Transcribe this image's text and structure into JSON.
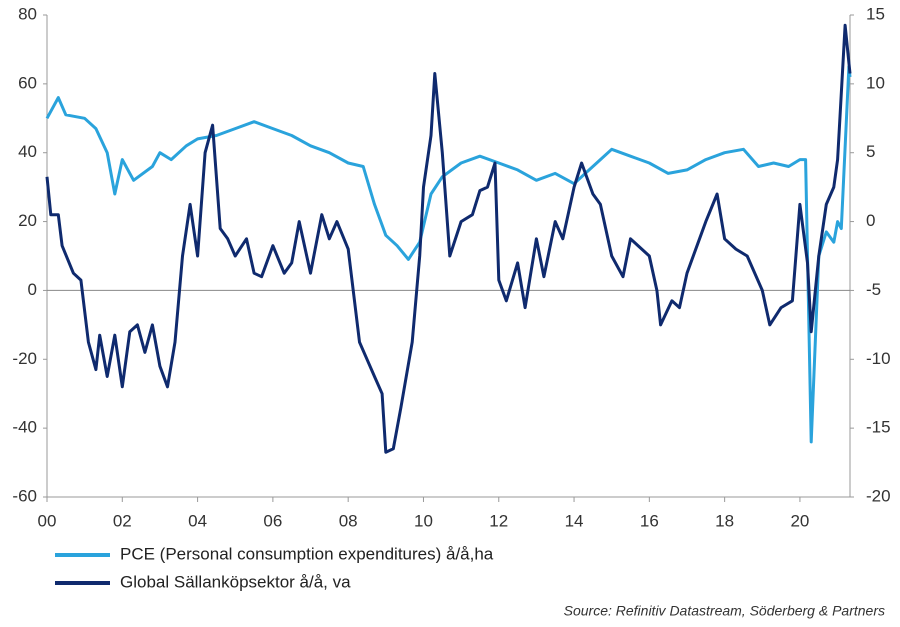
{
  "chart_data": {
    "type": "line",
    "source": "Source: Refinitiv Datastream, Söderberg & Partners",
    "xlim": [
      0,
      21.33
    ],
    "xticks": [
      {
        "value": 0,
        "label": "00"
      },
      {
        "value": 2,
        "label": "02"
      },
      {
        "value": 4,
        "label": "04"
      },
      {
        "value": 6,
        "label": "06"
      },
      {
        "value": 8,
        "label": "08"
      },
      {
        "value": 10,
        "label": "10"
      },
      {
        "value": 12,
        "label": "12"
      },
      {
        "value": 14,
        "label": "14"
      },
      {
        "value": 16,
        "label": "16"
      },
      {
        "value": 18,
        "label": "18"
      },
      {
        "value": 20,
        "label": "20"
      }
    ],
    "ylim": [
      -60,
      80
    ],
    "yticks": [
      -60,
      -40,
      -20,
      0,
      20,
      40,
      60,
      80
    ],
    "y2lim": [
      -20,
      15
    ],
    "y2ticks": [
      -20,
      -15,
      -10,
      -5,
      0,
      5,
      10,
      15
    ],
    "series": [
      {
        "name": "PCE (Personal consumption expenditures) å/å,ha",
        "color": "#2aa3dc",
        "axis": "y2",
        "x": [
          0,
          0.3,
          0.5,
          1,
          1.3,
          1.6,
          1.8,
          2,
          2.3,
          2.8,
          3,
          3.3,
          3.7,
          4,
          4.5,
          5,
          5.5,
          6,
          6.5,
          7,
          7.5,
          8,
          8.4,
          8.7,
          9,
          9.3,
          9.6,
          9.9,
          10.2,
          10.5,
          11,
          11.5,
          12,
          12.5,
          13,
          13.5,
          14,
          14.3,
          14.7,
          15,
          15.5,
          16,
          16.5,
          17,
          17.5,
          18,
          18.5,
          18.9,
          19.3,
          19.7,
          20,
          20.15,
          20.3,
          20.5,
          20.7,
          20.9,
          21,
          21.1,
          21.3,
          21.33
        ],
        "values": [
          7.5,
          9,
          7.75,
          7.5,
          6.75,
          5,
          2,
          4.5,
          3,
          4,
          5,
          4.5,
          5.5,
          6,
          6.25,
          6.75,
          7.25,
          6.75,
          6.25,
          5.5,
          5,
          4.25,
          4,
          1.25,
          -1,
          -1.75,
          -2.75,
          -1.5,
          2,
          3.25,
          4.25,
          4.75,
          4.25,
          3.75,
          3,
          3.5,
          2.75,
          3.5,
          4.5,
          5.25,
          4.75,
          4.25,
          3.5,
          3.75,
          4.5,
          5,
          5.25,
          4,
          4.25,
          4,
          4.5,
          4.5,
          -16,
          -2.5,
          -0.75,
          -1.5,
          0,
          -0.5,
          11.25,
          10.5
        ]
      },
      {
        "name": "Global Sällanköpsektor å/å, va",
        "color": "#0f2a6e",
        "axis": "y",
        "x": [
          0,
          0.1,
          0.3,
          0.4,
          0.7,
          0.9,
          1.1,
          1.3,
          1.4,
          1.6,
          1.8,
          2,
          2.2,
          2.4,
          2.6,
          2.8,
          3,
          3.2,
          3.4,
          3.6,
          3.8,
          4,
          4.2,
          4.4,
          4.6,
          4.8,
          5,
          5.3,
          5.5,
          5.7,
          6,
          6.3,
          6.5,
          6.7,
          7,
          7.3,
          7.5,
          7.7,
          8,
          8.3,
          8.5,
          8.7,
          8.9,
          9,
          9.2,
          9.4,
          9.7,
          9.9,
          10,
          10.2,
          10.3,
          10.5,
          10.7,
          11,
          11.3,
          11.5,
          11.7,
          11.9,
          12,
          12.2,
          12.5,
          12.7,
          13,
          13.2,
          13.5,
          13.7,
          14,
          14.2,
          14.5,
          14.7,
          15,
          15.3,
          15.5,
          16,
          16.2,
          16.3,
          16.6,
          16.8,
          17,
          17.3,
          17.5,
          17.8,
          18,
          18.3,
          18.6,
          19,
          19.2,
          19.5,
          19.8,
          20,
          20.2,
          20.3,
          20.5,
          20.7,
          20.9,
          21,
          21.2,
          21.33
        ],
        "values": [
          33,
          22,
          22,
          13,
          5,
          3,
          -15,
          -23,
          -13,
          -25,
          -13,
          -28,
          -12,
          -10,
          -18,
          -10,
          -22,
          -28,
          -15,
          10,
          25,
          10,
          40,
          48,
          18,
          15,
          10,
          15,
          5,
          4,
          13,
          5,
          8,
          20,
          5,
          22,
          15,
          20,
          12,
          -15,
          -20,
          -25,
          -30,
          -47,
          -46,
          -34,
          -15,
          10,
          30,
          45,
          63,
          40,
          10,
          20,
          22,
          29,
          30,
          37,
          3,
          -3,
          8,
          -5,
          15,
          4,
          20,
          15,
          30,
          37,
          28,
          25,
          10,
          4,
          15,
          10,
          0,
          -10,
          -3,
          -5,
          5,
          14,
          20,
          28,
          15,
          12,
          10,
          0,
          -10,
          -5,
          -3,
          25,
          8,
          -12,
          10,
          25,
          30,
          38,
          77,
          63
        ]
      }
    ]
  }
}
